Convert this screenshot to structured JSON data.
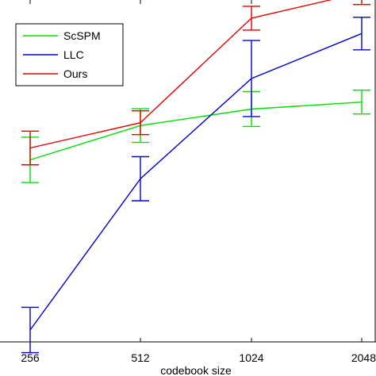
{
  "chart_data": {
    "type": "line",
    "xlabel": "codebook size",
    "ylabel": "",
    "x": [
      "256",
      "512",
      "1024",
      "2048"
    ],
    "x_scale": "log2",
    "grid": false,
    "legend_position": "top-left",
    "series": [
      {
        "name": "ScSPM",
        "color": "#00e000",
        "values": [
          0.627,
          0.745,
          0.802,
          0.826
        ],
        "error": [
          0.078,
          0.058,
          0.06,
          0.041
        ]
      },
      {
        "name": "LLC",
        "color": "#0000d0",
        "values": [
          0.041,
          0.562,
          0.907,
          1.062
        ],
        "error": [
          0.078,
          0.076,
          0.131,
          0.056
        ]
      },
      {
        "name": "Ours",
        "color": "#e00000",
        "values": [
          0.668,
          0.755,
          1.115,
          1.203
        ],
        "error": [
          0.058,
          0.041,
          0.041,
          0.041
        ]
      }
    ]
  }
}
